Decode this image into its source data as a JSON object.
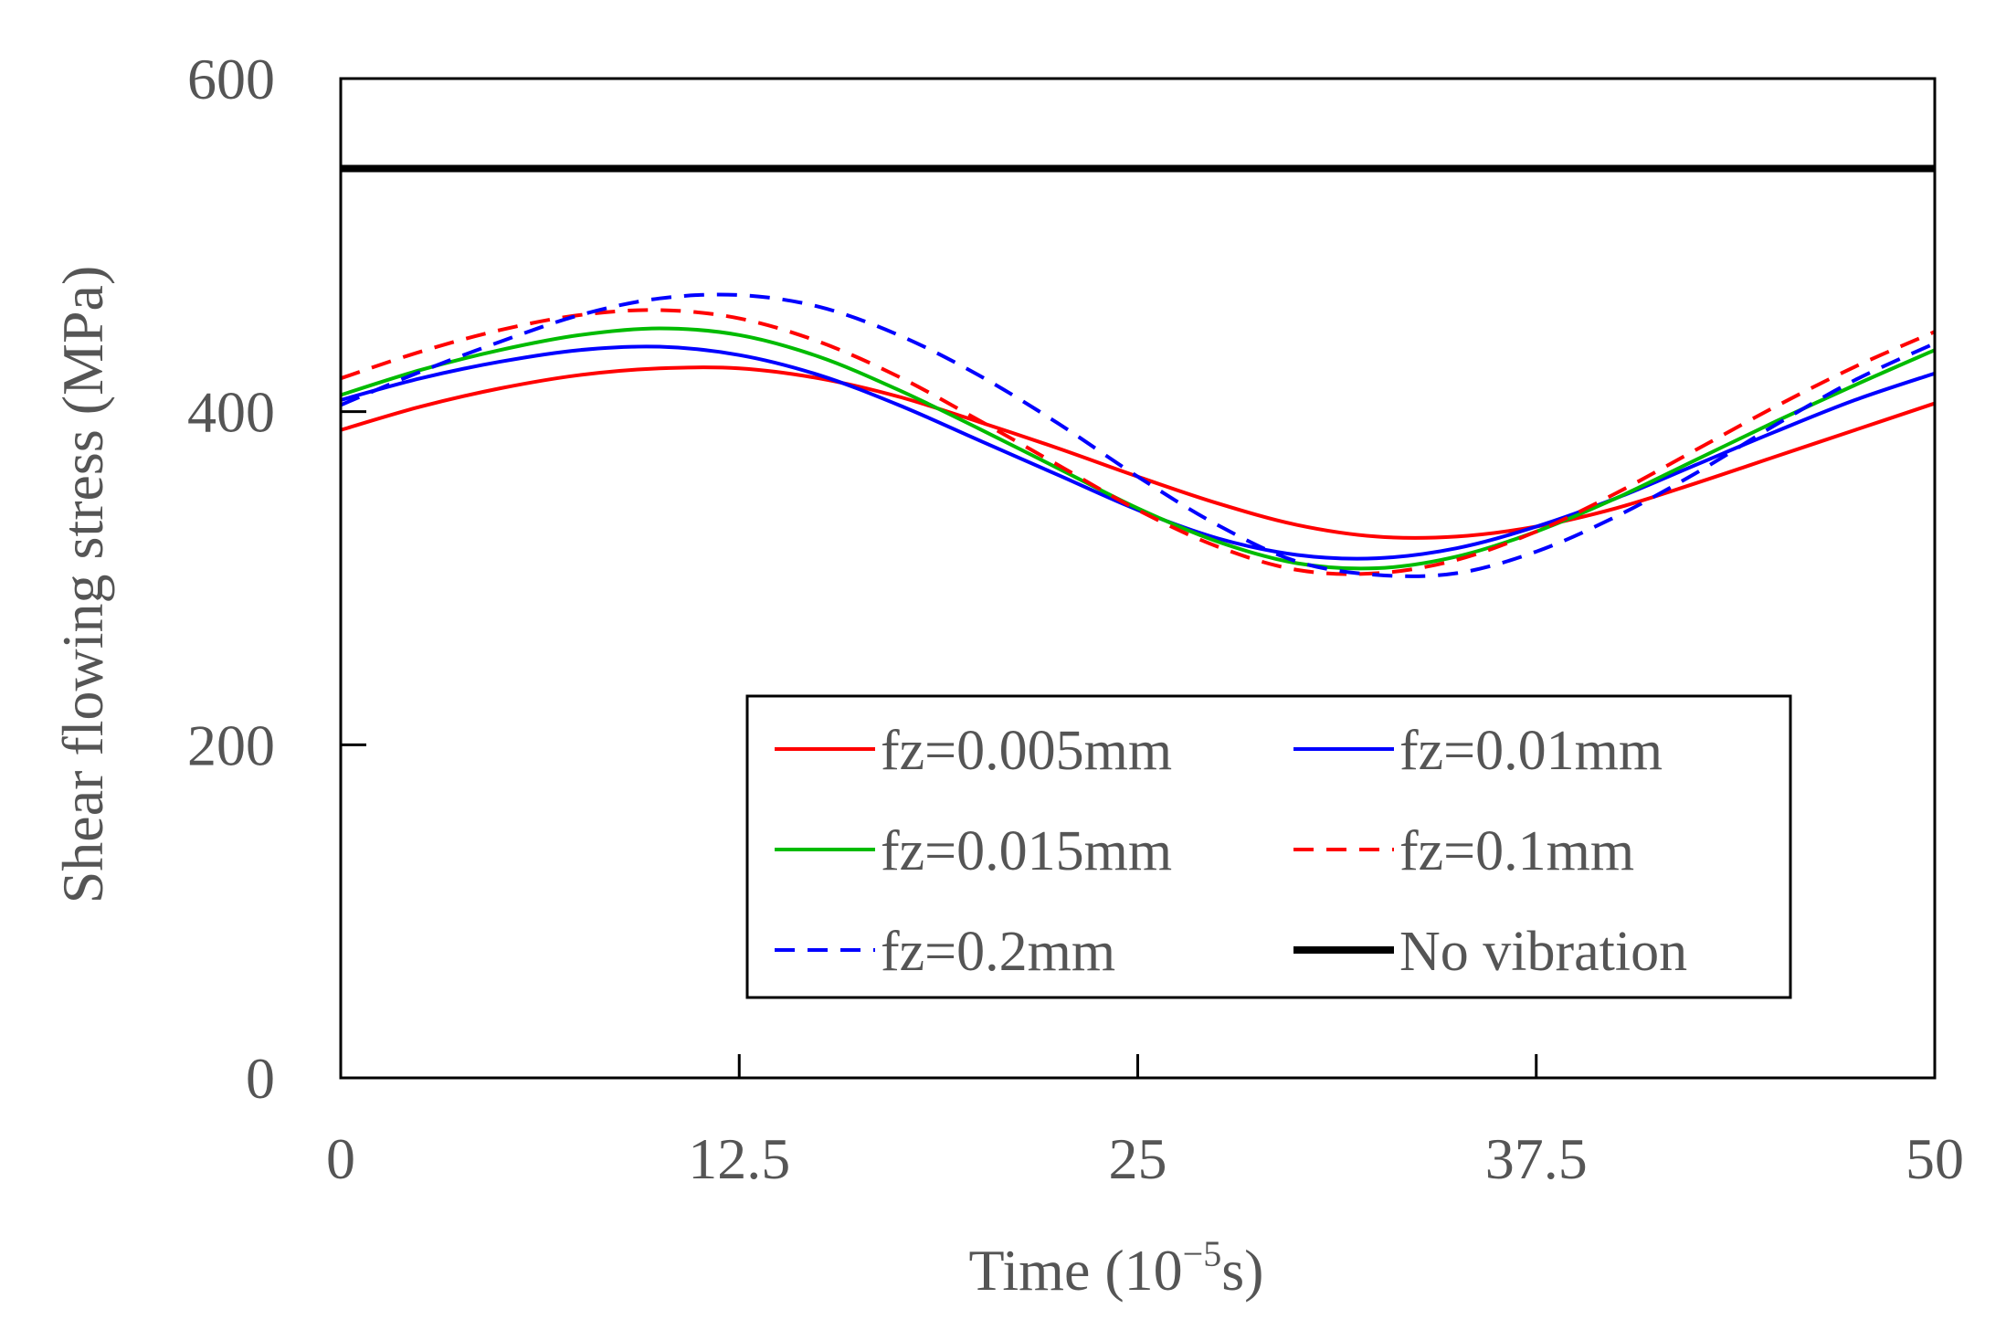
{
  "chart_data": {
    "type": "line",
    "xlabel": "Time (10",
    "xlabel_sup": "−5",
    "xlabel_tail": "s)",
    "ylabel": "Shear flowing stress (MPa)",
    "xlim": [
      0,
      50
    ],
    "ylim": [
      0,
      600
    ],
    "xticks": [
      "0",
      "12.5",
      "25",
      "37.5",
      "50"
    ],
    "yticks": [
      "0",
      "200",
      "400",
      "600"
    ],
    "xtick_values": [
      0,
      12.5,
      25,
      37.5,
      50
    ],
    "ytick_values": [
      0,
      200,
      400,
      600
    ],
    "grid": false,
    "legend_position": "lower-right",
    "x": [
      0,
      2.5,
      5,
      7.5,
      10,
      12.5,
      15,
      17.5,
      20,
      22.5,
      25,
      27.5,
      30,
      32.5,
      35,
      37.5,
      40,
      42.5,
      45,
      47.5,
      50
    ],
    "series": [
      {
        "name": "fz=0.005mm",
        "color": "#ff0000",
        "dash": "solid",
        "values": [
          389,
          403,
          414,
          422,
          426,
          426,
          420,
          409,
          394,
          378,
          361,
          345,
          332,
          325,
          325,
          331,
          342,
          357,
          373,
          389,
          405
        ]
      },
      {
        "name": "fz=0.01mm",
        "color": "#0000ff",
        "dash": "solid",
        "values": [
          407,
          420,
          430,
          437,
          439,
          434,
          422,
          404,
          383,
          362,
          341,
          324,
          314,
          312,
          318,
          331,
          348,
          368,
          388,
          407,
          423
        ]
      },
      {
        "name": "fz=0.015mm",
        "color": "#00bb00",
        "dash": "solid",
        "values": [
          410,
          425,
          437,
          446,
          450,
          446,
          433,
          413,
          390,
          366,
          342,
          322,
          309,
          306,
          313,
          328,
          348,
          371,
          394,
          416,
          437
        ]
      },
      {
        "name": "fz=0.1mm",
        "color": "#ff0000",
        "dash": "dashed",
        "values": [
          420,
          436,
          449,
          458,
          461,
          456,
          442,
          421,
          395,
          368,
          341,
          319,
          305,
          303,
          311,
          328,
          351,
          377,
          403,
          427,
          448
        ]
      },
      {
        "name": "fz=0.2mm",
        "color": "#0000ff",
        "dash": "dashed",
        "values": [
          404,
          424,
          442,
          458,
          468,
          470,
          463,
          446,
          422,
          393,
          361,
          332,
          310,
          302,
          303,
          316,
          337,
          363,
          392,
          419,
          441
        ]
      },
      {
        "name": "No vibration",
        "color": "#000000",
        "dash": "solid-thick",
        "values": [
          546,
          546,
          546,
          546,
          546,
          546,
          546,
          546,
          546,
          546,
          546,
          546,
          546,
          546,
          546,
          546,
          546,
          546,
          546,
          546,
          546
        ]
      }
    ]
  }
}
